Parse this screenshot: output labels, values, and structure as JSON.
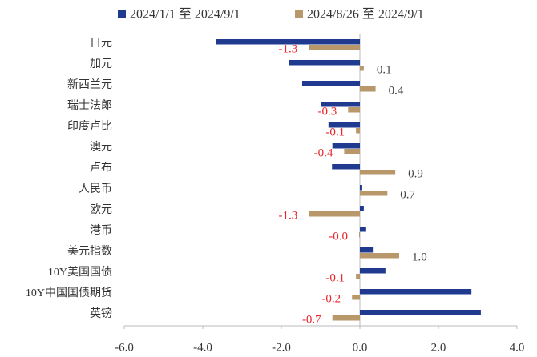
{
  "chart_data": {
    "type": "hbar",
    "categories": [
      "日元",
      "加元",
      "新西兰元",
      "瑞士法郎",
      "印度卢比",
      "澳元",
      "卢布",
      "人民币",
      "欧元",
      "港币",
      "美元指数",
      "10Y美国国债",
      "10Y中国国债期货",
      "英镑"
    ],
    "series": [
      {
        "name": "2024/1/1 至 2024/9/1",
        "color": "#1f3a8f",
        "values": [
          -3.67,
          -1.8,
          -1.47,
          -1.0,
          -0.8,
          -0.7,
          -0.71,
          0.06,
          0.1,
          0.16,
          0.35,
          0.65,
          2.84,
          3.08
        ]
      },
      {
        "name": "2024/8/26 至 2024/9/1",
        "color": "#b8976a",
        "values": [
          -1.3,
          0.1,
          0.4,
          -0.3,
          -0.1,
          -0.4,
          0.9,
          0.7,
          -1.3,
          -0.02,
          1.0,
          -0.1,
          -0.2,
          -0.7
        ],
        "value_labels": [
          "-1.3",
          "0.1",
          "0.4",
          "-0.3",
          "-0.1",
          "-0.4",
          "0.9",
          "0.7",
          "-1.3",
          "-0.0",
          "1.0",
          "-0.1",
          "-0.2",
          "-0.7"
        ]
      }
    ],
    "xlim": [
      -6,
      4
    ],
    "xticks": [
      {
        "value": -6,
        "label": "-6.0"
      },
      {
        "value": -4,
        "label": "-4.0"
      },
      {
        "value": -2,
        "label": "-2.0"
      },
      {
        "value": 0,
        "label": "0.0"
      },
      {
        "value": 2,
        "label": "2.0"
      },
      {
        "value": 4,
        "label": "4.0"
      }
    ],
    "legend": "top"
  }
}
